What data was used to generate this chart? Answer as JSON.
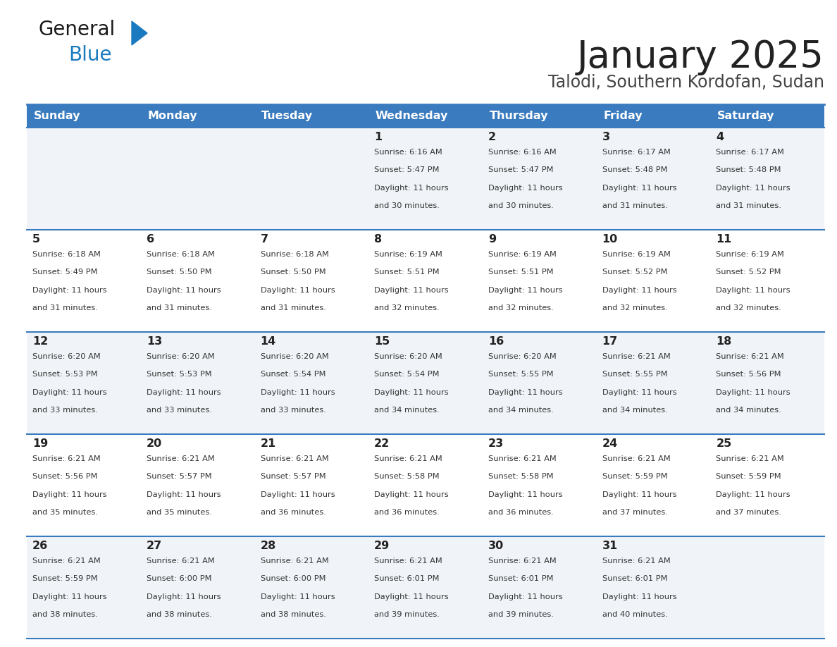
{
  "title": "January 2025",
  "subtitle": "Talodi, Southern Kordofan, Sudan",
  "days_of_week": [
    "Sunday",
    "Monday",
    "Tuesday",
    "Wednesday",
    "Thursday",
    "Friday",
    "Saturday"
  ],
  "header_bg": "#3a7bbf",
  "header_text": "#ffffff",
  "row_bg_odd": "#f0f4f8",
  "row_bg_even": "#ffffff",
  "cell_border_color": "#3a7bbf",
  "title_color": "#222222",
  "subtitle_color": "#444444",
  "day_num_color": "#222222",
  "info_color": "#333333",
  "logo_general_color": "#1a1a1a",
  "logo_blue_color": "#1a7abf",
  "calendar_data": [
    [
      null,
      null,
      null,
      {
        "day": 1,
        "sunrise": "6:16 AM",
        "sunset": "5:47 PM",
        "daylight_hours": 11,
        "daylight_minutes": 30
      },
      {
        "day": 2,
        "sunrise": "6:16 AM",
        "sunset": "5:47 PM",
        "daylight_hours": 11,
        "daylight_minutes": 30
      },
      {
        "day": 3,
        "sunrise": "6:17 AM",
        "sunset": "5:48 PM",
        "daylight_hours": 11,
        "daylight_minutes": 31
      },
      {
        "day": 4,
        "sunrise": "6:17 AM",
        "sunset": "5:48 PM",
        "daylight_hours": 11,
        "daylight_minutes": 31
      }
    ],
    [
      {
        "day": 5,
        "sunrise": "6:18 AM",
        "sunset": "5:49 PM",
        "daylight_hours": 11,
        "daylight_minutes": 31
      },
      {
        "day": 6,
        "sunrise": "6:18 AM",
        "sunset": "5:50 PM",
        "daylight_hours": 11,
        "daylight_minutes": 31
      },
      {
        "day": 7,
        "sunrise": "6:18 AM",
        "sunset": "5:50 PM",
        "daylight_hours": 11,
        "daylight_minutes": 31
      },
      {
        "day": 8,
        "sunrise": "6:19 AM",
        "sunset": "5:51 PM",
        "daylight_hours": 11,
        "daylight_minutes": 32
      },
      {
        "day": 9,
        "sunrise": "6:19 AM",
        "sunset": "5:51 PM",
        "daylight_hours": 11,
        "daylight_minutes": 32
      },
      {
        "day": 10,
        "sunrise": "6:19 AM",
        "sunset": "5:52 PM",
        "daylight_hours": 11,
        "daylight_minutes": 32
      },
      {
        "day": 11,
        "sunrise": "6:19 AM",
        "sunset": "5:52 PM",
        "daylight_hours": 11,
        "daylight_minutes": 32
      }
    ],
    [
      {
        "day": 12,
        "sunrise": "6:20 AM",
        "sunset": "5:53 PM",
        "daylight_hours": 11,
        "daylight_minutes": 33
      },
      {
        "day": 13,
        "sunrise": "6:20 AM",
        "sunset": "5:53 PM",
        "daylight_hours": 11,
        "daylight_minutes": 33
      },
      {
        "day": 14,
        "sunrise": "6:20 AM",
        "sunset": "5:54 PM",
        "daylight_hours": 11,
        "daylight_minutes": 33
      },
      {
        "day": 15,
        "sunrise": "6:20 AM",
        "sunset": "5:54 PM",
        "daylight_hours": 11,
        "daylight_minutes": 34
      },
      {
        "day": 16,
        "sunrise": "6:20 AM",
        "sunset": "5:55 PM",
        "daylight_hours": 11,
        "daylight_minutes": 34
      },
      {
        "day": 17,
        "sunrise": "6:21 AM",
        "sunset": "5:55 PM",
        "daylight_hours": 11,
        "daylight_minutes": 34
      },
      {
        "day": 18,
        "sunrise": "6:21 AM",
        "sunset": "5:56 PM",
        "daylight_hours": 11,
        "daylight_minutes": 34
      }
    ],
    [
      {
        "day": 19,
        "sunrise": "6:21 AM",
        "sunset": "5:56 PM",
        "daylight_hours": 11,
        "daylight_minutes": 35
      },
      {
        "day": 20,
        "sunrise": "6:21 AM",
        "sunset": "5:57 PM",
        "daylight_hours": 11,
        "daylight_minutes": 35
      },
      {
        "day": 21,
        "sunrise": "6:21 AM",
        "sunset": "5:57 PM",
        "daylight_hours": 11,
        "daylight_minutes": 36
      },
      {
        "day": 22,
        "sunrise": "6:21 AM",
        "sunset": "5:58 PM",
        "daylight_hours": 11,
        "daylight_minutes": 36
      },
      {
        "day": 23,
        "sunrise": "6:21 AM",
        "sunset": "5:58 PM",
        "daylight_hours": 11,
        "daylight_minutes": 36
      },
      {
        "day": 24,
        "sunrise": "6:21 AM",
        "sunset": "5:59 PM",
        "daylight_hours": 11,
        "daylight_minutes": 37
      },
      {
        "day": 25,
        "sunrise": "6:21 AM",
        "sunset": "5:59 PM",
        "daylight_hours": 11,
        "daylight_minutes": 37
      }
    ],
    [
      {
        "day": 26,
        "sunrise": "6:21 AM",
        "sunset": "5:59 PM",
        "daylight_hours": 11,
        "daylight_minutes": 38
      },
      {
        "day": 27,
        "sunrise": "6:21 AM",
        "sunset": "6:00 PM",
        "daylight_hours": 11,
        "daylight_minutes": 38
      },
      {
        "day": 28,
        "sunrise": "6:21 AM",
        "sunset": "6:00 PM",
        "daylight_hours": 11,
        "daylight_minutes": 38
      },
      {
        "day": 29,
        "sunrise": "6:21 AM",
        "sunset": "6:01 PM",
        "daylight_hours": 11,
        "daylight_minutes": 39
      },
      {
        "day": 30,
        "sunrise": "6:21 AM",
        "sunset": "6:01 PM",
        "daylight_hours": 11,
        "daylight_minutes": 39
      },
      {
        "day": 31,
        "sunrise": "6:21 AM",
        "sunset": "6:01 PM",
        "daylight_hours": 11,
        "daylight_minutes": 40
      },
      null
    ]
  ]
}
